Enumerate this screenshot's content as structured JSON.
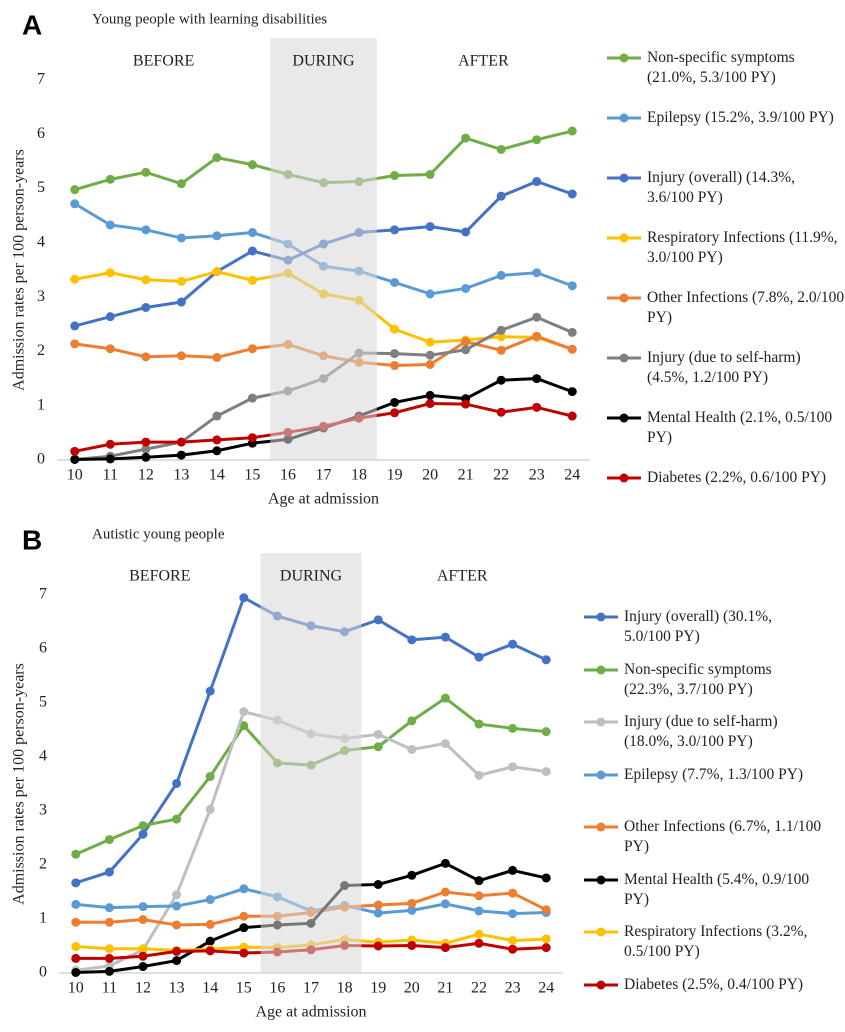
{
  "chart_data": [
    {
      "type": "line",
      "panel_label": "A",
      "title": "Young people with learning disabilities",
      "x_label": "Age at admission",
      "y_label": "Admission rates per 100 person-years",
      "annotations": [
        {
          "text": "BEFORE",
          "from": 10,
          "to": 15
        },
        {
          "text": "DURING",
          "from": 16,
          "to": 18,
          "shaded": true
        },
        {
          "text": "AFTER",
          "from": 19,
          "to": 24
        }
      ],
      "x": [
        10,
        11,
        12,
        13,
        14,
        15,
        16,
        17,
        18,
        19,
        20,
        21,
        22,
        23,
        24
      ],
      "xlim": [
        9.5,
        24.5
      ],
      "xticks": [
        10,
        11,
        12,
        13,
        14,
        15,
        16,
        17,
        18,
        19,
        20,
        21,
        22,
        23,
        24
      ],
      "ylim": [
        0,
        7
      ],
      "yticks": [
        0,
        1,
        2,
        3,
        4,
        5,
        6,
        7
      ],
      "grid": false,
      "legend": "right",
      "series": [
        {
          "name": "Non-specific symptoms (21.0%, 5.3/100 PY)",
          "color": "#70ad47",
          "values": [
            4.98,
            5.17,
            5.3,
            5.09,
            5.57,
            5.44,
            5.26,
            5.11,
            5.13,
            5.24,
            5.26,
            5.93,
            5.72,
            5.9,
            6.06
          ]
        },
        {
          "name": "Epilepsy (15.2%, 3.9/100 PY)",
          "color": "#5b9bd5",
          "values": [
            4.72,
            4.33,
            4.24,
            4.09,
            4.13,
            4.19,
            3.98,
            3.57,
            3.48,
            3.27,
            3.06,
            3.16,
            3.4,
            3.45,
            3.21
          ]
        },
        {
          "name": "Injury (overall) (14.3%, 3.6/100 PY)",
          "color": "#4472c4",
          "values": [
            2.47,
            2.64,
            2.81,
            2.91,
            3.47,
            3.85,
            3.68,
            3.98,
            4.19,
            4.24,
            4.3,
            4.2,
            4.86,
            5.13,
            4.9
          ]
        },
        {
          "name": "Respiratory Infections (11.9%, 3.0/100 PY)",
          "color": "#ffc000",
          "values": [
            3.33,
            3.45,
            3.32,
            3.29,
            3.47,
            3.31,
            3.44,
            3.06,
            2.94,
            2.41,
            2.17,
            2.21,
            2.27,
            2.26,
            2.04
          ]
        },
        {
          "name": "Other Infections (7.8%, 2.0/100 PY)",
          "color": "#ed7d31",
          "values": [
            2.14,
            2.05,
            1.9,
            1.92,
            1.89,
            2.05,
            2.13,
            1.92,
            1.8,
            1.74,
            1.76,
            2.18,
            2.02,
            2.28,
            2.04
          ]
        },
        {
          "name": "Injury (due to self-harm) (4.5%, 1.2/100 PY)",
          "color": "#7f7f7f",
          "values": [
            0.01,
            0.07,
            0.2,
            0.33,
            0.81,
            1.14,
            1.27,
            1.5,
            1.97,
            1.96,
            1.93,
            2.03,
            2.39,
            2.63,
            2.35
          ]
        },
        {
          "name": "Mental Health (2.1%, 0.5/100 PY)",
          "color": "#000000",
          "values": [
            0.01,
            0.02,
            0.05,
            0.09,
            0.17,
            0.31,
            0.38,
            0.59,
            0.81,
            1.06,
            1.19,
            1.13,
            1.47,
            1.5,
            1.26
          ]
        },
        {
          "name": "Diabetes (2.2%, 0.6/100 PY)",
          "color": "#c00000",
          "values": [
            0.16,
            0.29,
            0.33,
            0.33,
            0.37,
            0.41,
            0.51,
            0.62,
            0.77,
            0.87,
            1.04,
            1.03,
            0.88,
            0.97,
            0.81
          ]
        }
      ]
    },
    {
      "type": "line",
      "panel_label": "B",
      "title": "Autistic young people",
      "x_label": "Age at admission",
      "y_label": "Admission rates per 100 person-years",
      "annotations": [
        {
          "text": "BEFORE",
          "from": 10,
          "to": 15
        },
        {
          "text": "DURING",
          "from": 16,
          "to": 18,
          "shaded": true
        },
        {
          "text": "AFTER",
          "from": 19,
          "to": 24
        }
      ],
      "x": [
        10,
        11,
        12,
        13,
        14,
        15,
        16,
        17,
        18,
        19,
        20,
        21,
        22,
        23,
        24
      ],
      "xlim": [
        9.5,
        24.5
      ],
      "xticks": [
        10,
        11,
        12,
        13,
        14,
        15,
        16,
        17,
        18,
        19,
        20,
        21,
        22,
        23,
        24
      ],
      "ylim": [
        0,
        7
      ],
      "yticks": [
        0,
        1,
        2,
        3,
        4,
        5,
        6,
        7
      ],
      "grid": false,
      "legend": "right",
      "series": [
        {
          "name": "Injury (overall) (30.1%, 5.0/100 PY)",
          "color": "#4472c4",
          "values": [
            1.67,
            1.87,
            2.57,
            3.51,
            5.22,
            6.95,
            6.61,
            6.43,
            6.32,
            6.54,
            6.17,
            6.22,
            5.85,
            6.09,
            5.8
          ]
        },
        {
          "name": "Non-specific symptoms (22.3%, 3.7/100 PY)",
          "color": "#70ad47",
          "values": [
            2.2,
            2.47,
            2.73,
            2.85,
            3.64,
            4.58,
            3.89,
            3.85,
            4.12,
            4.19,
            4.67,
            5.09,
            4.61,
            4.53,
            4.47
          ]
        },
        {
          "name": "Injury (due to self-harm) (18.0%, 3.0/100 PY)",
          "color": "#bfbfbf",
          "values": [
            0.05,
            0.13,
            0.43,
            1.45,
            3.03,
            4.84,
            4.68,
            4.43,
            4.34,
            4.42,
            4.14,
            4.25,
            3.66,
            3.82,
            3.73
          ]
        },
        {
          "name": "Epilepsy (7.7%, 1.3/100 PY)",
          "color": "#5b9bd5",
          "values": [
            1.27,
            1.21,
            1.23,
            1.24,
            1.36,
            1.56,
            1.41,
            1.15,
            1.25,
            1.11,
            1.16,
            1.28,
            1.15,
            1.1,
            1.12
          ]
        },
        {
          "name": "Other Infections (6.7%, 1.1/100 PY)",
          "color": "#ed7d31",
          "values": [
            0.94,
            0.94,
            0.99,
            0.89,
            0.9,
            1.05,
            1.05,
            1.12,
            1.22,
            1.26,
            1.29,
            1.5,
            1.43,
            1.48,
            1.17
          ]
        },
        {
          "name": "Mental Health (5.4%, 0.9/100 PY)",
          "color": "#000000",
          "values": [
            0.01,
            0.03,
            0.12,
            0.23,
            0.59,
            0.84,
            0.89,
            0.92,
            1.62,
            1.64,
            1.81,
            2.03,
            1.71,
            1.9,
            1.76
          ]
        },
        {
          "name": "Respiratory Infections (3.2%, 0.5/100 PY)",
          "color": "#ffc000",
          "values": [
            0.49,
            0.45,
            0.45,
            0.42,
            0.44,
            0.48,
            0.47,
            0.52,
            0.62,
            0.57,
            0.61,
            0.55,
            0.72,
            0.6,
            0.63
          ]
        },
        {
          "name": "Diabetes (2.5%, 0.4/100 PY)",
          "color": "#c00000",
          "values": [
            0.27,
            0.27,
            0.31,
            0.4,
            0.41,
            0.37,
            0.39,
            0.43,
            0.51,
            0.5,
            0.51,
            0.47,
            0.55,
            0.44,
            0.47
          ]
        }
      ]
    }
  ]
}
